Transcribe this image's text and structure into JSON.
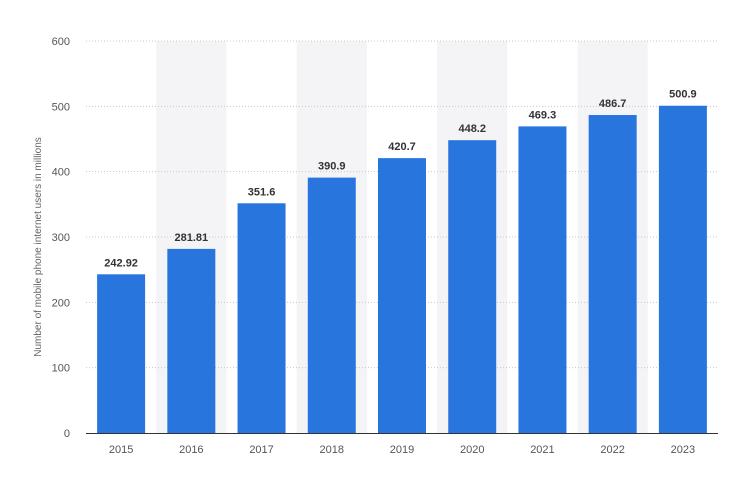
{
  "chart_data": {
    "type": "bar",
    "categories": [
      "2015",
      "2016",
      "2017",
      "2018",
      "2019",
      "2020",
      "2021",
      "2022",
      "2023"
    ],
    "values": [
      242.92,
      281.81,
      351.6,
      390.9,
      420.7,
      448.2,
      469.3,
      486.7,
      500.9
    ],
    "value_labels": [
      "242.92",
      "281.81",
      "351.6",
      "390.9",
      "420.7",
      "448.2",
      "469.3",
      "486.7",
      "500.9"
    ],
    "ylabel": "Number of mobile phone internet users in millions",
    "ylim": [
      0,
      600
    ],
    "yticks": [
      0,
      100,
      200,
      300,
      400,
      500,
      600
    ],
    "grid": true,
    "colors": {
      "bar": "#2876dd",
      "band": "#f4f4f7",
      "grid": "#c8c8c8",
      "axis": "#333333"
    }
  }
}
